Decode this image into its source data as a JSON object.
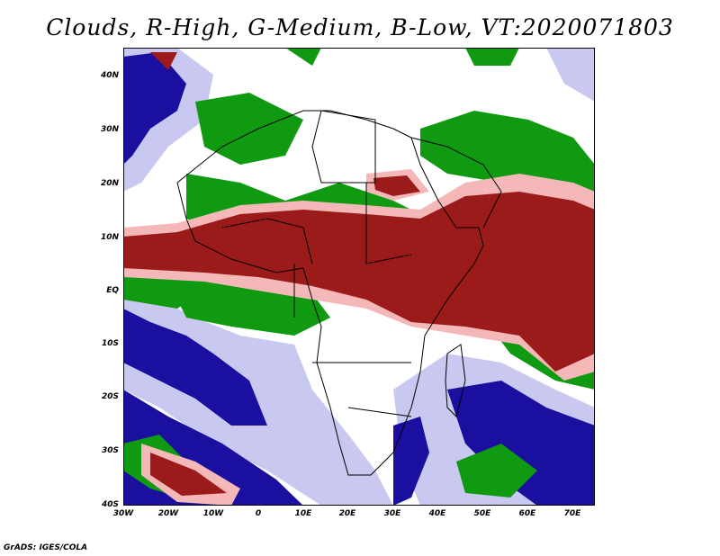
{
  "title": "Clouds, R-High, G-Medium, B-Low, VT:2020071803",
  "credit": "GrADS: IGES/COLA",
  "colors": {
    "high": "#9b1b1b",
    "high_light": "#f5b8b8",
    "medium": "#0f9a12",
    "low": "#1a0f9e",
    "low_light": "#c8c8f0",
    "coast": "#000000",
    "background": "#ffffff"
  },
  "axes": {
    "x_ticks": [
      "30W",
      "20W",
      "10W",
      "0",
      "10E",
      "20E",
      "30E",
      "40E",
      "50E",
      "60E",
      "70E"
    ],
    "y_ticks": [
      "40N",
      "30N",
      "20N",
      "10N",
      "EQ",
      "10S",
      "20S",
      "30S",
      "40S"
    ]
  }
}
